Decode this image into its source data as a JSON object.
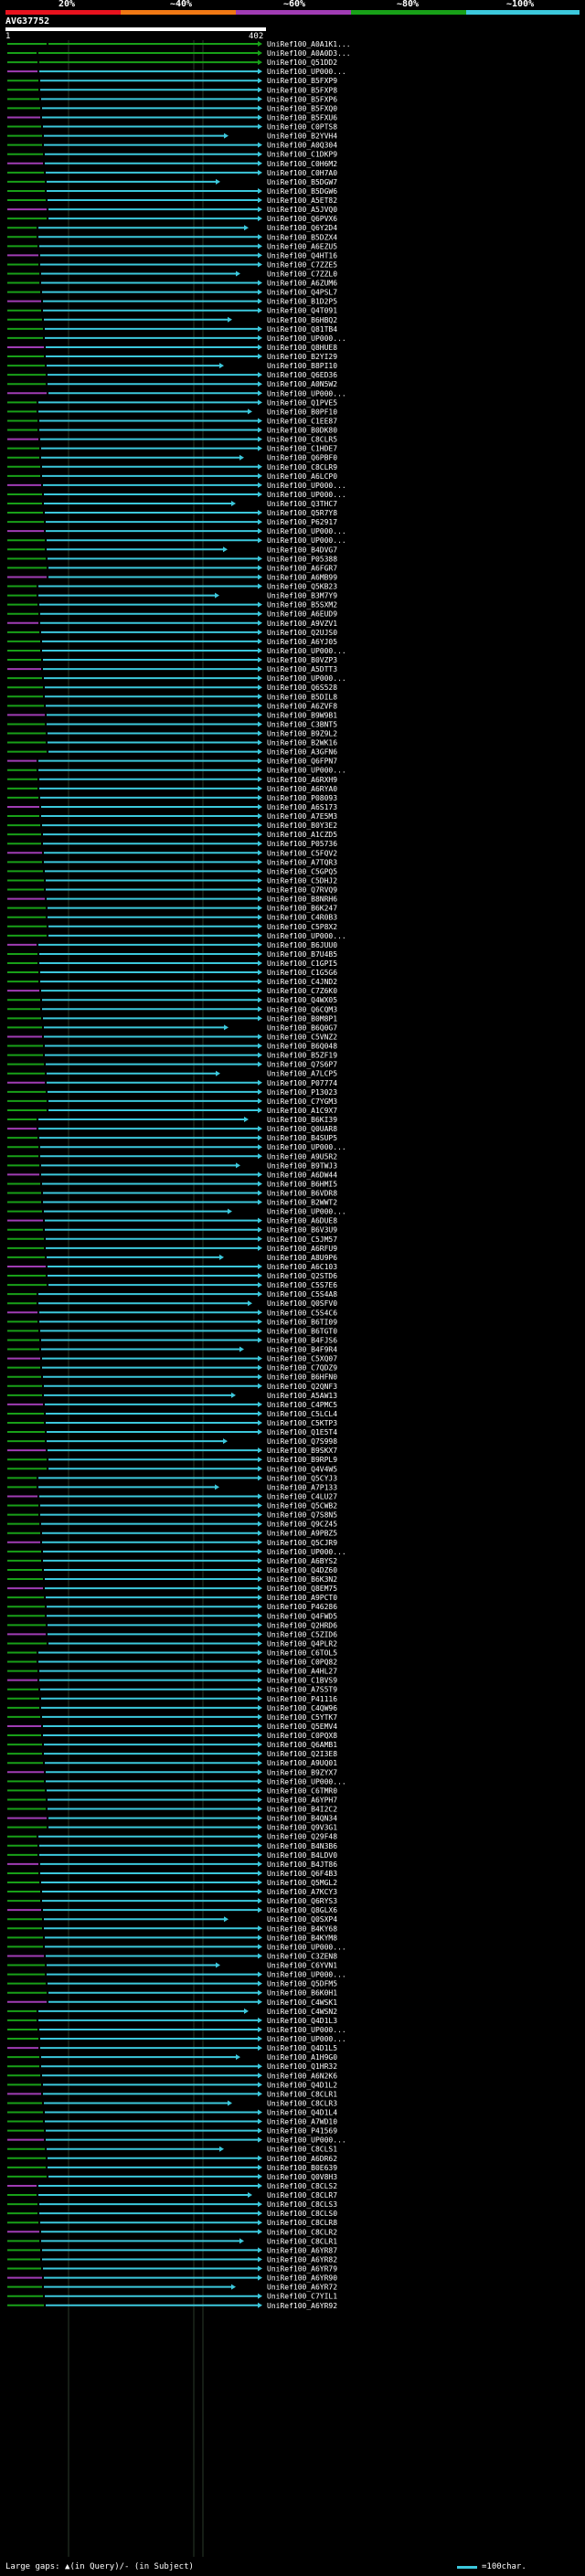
{
  "legend": {
    "labels": [
      "20%",
      "~40%",
      "~60%",
      "~80%",
      "~100%"
    ],
    "colors": [
      "#e8121e",
      "#f07814",
      "#a03cb4",
      "#18a018",
      "#3cc8dc"
    ]
  },
  "query": {
    "title": "AVG37752",
    "start": "1",
    "end": "402"
  },
  "hit_colors": {
    "cyan": "#3cc8dc",
    "green": "#18a018",
    "purple": "#a03cb4",
    "orange": "#f07814",
    "gray": "#707070"
  },
  "hits": [
    {
      "label": "UniRef100_A0A1K1...",
      "color": "green"
    },
    {
      "label": "UniRef100_A0A0D3...",
      "color": "green"
    },
    {
      "label": "UniRef100_Q51DD2",
      "color": "green"
    },
    {
      "label": "UniRef100_UP000...",
      "color": "cyan"
    },
    {
      "label": "UniRef100_B5FXP9",
      "color": "cyan"
    },
    {
      "label": "UniRef100_B5FXP8",
      "color": "cyan"
    },
    {
      "label": "UniRef100_B5FXP6",
      "color": "cyan"
    },
    {
      "label": "UniRef100_B5FXQ0",
      "color": "cyan"
    },
    {
      "label": "UniRef100_B5FXU6",
      "color": "cyan"
    },
    {
      "label": "UniRef100_C0PTS8",
      "color": "cyan"
    },
    {
      "label": "UniRef100_B2YVH4",
      "color": "cyan"
    },
    {
      "label": "UniRef100_A0Q304",
      "color": "cyan"
    },
    {
      "label": "UniRef100_C1DKP9",
      "color": "cyan"
    },
    {
      "label": "UniRef100_C0H6M2",
      "color": "cyan"
    },
    {
      "label": "UniRef100_C0H7A0",
      "color": "cyan"
    },
    {
      "label": "UniRef100_B5DGW7",
      "color": "cyan"
    },
    {
      "label": "UniRef100_B5DGW6",
      "color": "cyan"
    },
    {
      "label": "UniRef100_A5ET82",
      "color": "cyan"
    },
    {
      "label": "UniRef100_A5JVQ0",
      "color": "cyan"
    },
    {
      "label": "UniRef100_Q6PVX6",
      "color": "cyan"
    },
    {
      "label": "UniRef100_Q6Y2D4",
      "color": "cyan"
    },
    {
      "label": "UniRef100_B5DZX4",
      "color": "cyan"
    },
    {
      "label": "UniRef100_A6EZU5",
      "color": "cyan"
    },
    {
      "label": "UniRef100_Q4HT16",
      "color": "cyan"
    },
    {
      "label": "UniRef100_C7ZZE5",
      "color": "cyan"
    },
    {
      "label": "UniRef100_C7ZZL0",
      "color": "cyan"
    },
    {
      "label": "UniRef100_A6ZUM6",
      "color": "cyan"
    },
    {
      "label": "UniRef100_Q4PSL7",
      "color": "cyan"
    },
    {
      "label": "UniRef100_B1D2P5",
      "color": "cyan"
    },
    {
      "label": "UniRef100_Q4T091",
      "color": "cyan"
    },
    {
      "label": "UniRef100_B6HBQ2",
      "color": "cyan"
    },
    {
      "label": "UniRef100_Q81TB4",
      "color": "cyan"
    },
    {
      "label": "UniRef100_UP000...",
      "color": "cyan"
    },
    {
      "label": "UniRef100_Q8HUE8",
      "color": "cyan"
    },
    {
      "label": "UniRef100_B2YI29",
      "color": "cyan"
    },
    {
      "label": "UniRef100_B8PI10",
      "color": "cyan"
    },
    {
      "label": "UniRef100_Q6ED36",
      "color": "cyan"
    },
    {
      "label": "UniRef100_A0N5W2",
      "color": "cyan"
    },
    {
      "label": "UniRef100_UP000...",
      "color": "cyan"
    },
    {
      "label": "UniRef100_Q1PVE5",
      "color": "cyan"
    },
    {
      "label": "UniRef100_B0PF10",
      "color": "cyan"
    },
    {
      "label": "UniRef100_C1EE87",
      "color": "cyan"
    },
    {
      "label": "UniRef100_B0DK80",
      "color": "cyan"
    },
    {
      "label": "UniRef100_C8CLR5",
      "color": "cyan"
    },
    {
      "label": "UniRef100_C1HDE7",
      "color": "cyan"
    },
    {
      "label": "UniRef100_Q6PBF0",
      "color": "cyan"
    },
    {
      "label": "UniRef100_C8CLR9",
      "color": "cyan"
    },
    {
      "label": "UniRef100_A6LCP0",
      "color": "cyan"
    },
    {
      "label": "UniRef100_UP000...",
      "color": "cyan"
    },
    {
      "label": "UniRef100_UP000...",
      "color": "cyan"
    },
    {
      "label": "UniRef100_Q3THC7",
      "color": "cyan"
    },
    {
      "label": "UniRef100_Q5R7Y8",
      "color": "cyan"
    },
    {
      "label": "UniRef100_P62917",
      "color": "cyan"
    },
    {
      "label": "UniRef100_UP000...",
      "color": "cyan"
    },
    {
      "label": "UniRef100_UP000...",
      "color": "cyan"
    },
    {
      "label": "UniRef100_B4DVG7",
      "color": "cyan"
    },
    {
      "label": "UniRef100_P05388",
      "color": "cyan"
    },
    {
      "label": "UniRef100_A6FGR7",
      "color": "cyan"
    },
    {
      "label": "UniRef100_A6MB99",
      "color": "cyan"
    },
    {
      "label": "UniRef100_Q5KB23",
      "color": "cyan"
    },
    {
      "label": "UniRef100_B3M7Y9",
      "color": "cyan"
    },
    {
      "label": "UniRef100_B5SXM2",
      "color": "cyan"
    },
    {
      "label": "UniRef100_A6EUD9",
      "color": "cyan"
    },
    {
      "label": "UniRef100_A9VZV1",
      "color": "cyan"
    },
    {
      "label": "UniRef100_Q2UJS0",
      "color": "cyan"
    },
    {
      "label": "UniRef100_A6YJ05",
      "color": "cyan"
    },
    {
      "label": "UniRef100_UP000...",
      "color": "cyan"
    },
    {
      "label": "UniRef100_B0VZP3",
      "color": "cyan"
    },
    {
      "label": "UniRef100_A5DTT3",
      "color": "cyan"
    },
    {
      "label": "UniRef100_UP000...",
      "color": "cyan"
    },
    {
      "label": "UniRef100_Q6S528",
      "color": "cyan"
    },
    {
      "label": "UniRef100_B5DIL8",
      "color": "cyan"
    },
    {
      "label": "UniRef100_A6ZVF8",
      "color": "cyan"
    },
    {
      "label": "UniRef100_B9W9B1",
      "color": "cyan"
    },
    {
      "label": "UniRef100_C3BNT5",
      "color": "cyan"
    },
    {
      "label": "UniRef100_B9Z9L2",
      "color": "cyan"
    },
    {
      "label": "UniRef100_B2WK16",
      "color": "cyan"
    },
    {
      "label": "UniRef100_A3GFN6",
      "color": "cyan"
    },
    {
      "label": "UniRef100_Q6FPN7",
      "color": "cyan"
    },
    {
      "label": "UniRef100_UP000...",
      "color": "cyan"
    },
    {
      "label": "UniRef100_A6RXH9",
      "color": "cyan"
    },
    {
      "label": "UniRef100_A6RYA0",
      "color": "cyan"
    },
    {
      "label": "UniRef100_P08093",
      "color": "cyan"
    },
    {
      "label": "UniRef100_A6S173",
      "color": "cyan"
    },
    {
      "label": "UniRef100_A7E5M3",
      "color": "cyan"
    },
    {
      "label": "UniRef100_B0Y3E2",
      "color": "cyan"
    },
    {
      "label": "UniRef100_A1CZD5",
      "color": "cyan"
    },
    {
      "label": "UniRef100_P05736",
      "color": "cyan"
    },
    {
      "label": "UniRef100_C5FQV2",
      "color": "cyan"
    },
    {
      "label": "UniRef100_A7TQR3",
      "color": "cyan"
    },
    {
      "label": "UniRef100_C5GPQ5",
      "color": "cyan"
    },
    {
      "label": "UniRef100_C5DHJ2",
      "color": "cyan"
    },
    {
      "label": "UniRef100_Q7RVQ9",
      "color": "cyan"
    },
    {
      "label": "UniRef100_B8NRH6",
      "color": "cyan"
    },
    {
      "label": "UniRef100_B6K247",
      "color": "cyan"
    },
    {
      "label": "UniRef100_C4R0B3",
      "color": "cyan"
    },
    {
      "label": "UniRef100_C5P8X2",
      "color": "cyan"
    },
    {
      "label": "UniRef100_UP000...",
      "color": "cyan"
    },
    {
      "label": "UniRef100_B6JUU0",
      "color": "cyan"
    },
    {
      "label": "UniRef100_B7U4B5",
      "color": "cyan"
    },
    {
      "label": "UniRef100_C1GPI5",
      "color": "cyan"
    },
    {
      "label": "UniRef100_C1G5G6",
      "color": "cyan"
    },
    {
      "label": "UniRef100_C4JND2",
      "color": "cyan"
    },
    {
      "label": "UniRef100_C7Z6K0",
      "color": "cyan"
    },
    {
      "label": "UniRef100_Q4WX05",
      "color": "cyan"
    },
    {
      "label": "UniRef100_Q6CQM3",
      "color": "cyan"
    },
    {
      "label": "UniRef100_B0M8P1",
      "color": "cyan"
    },
    {
      "label": "UniRef100_B6Q0G7",
      "color": "cyan"
    },
    {
      "label": "UniRef100_C5VNZ2",
      "color": "cyan"
    },
    {
      "label": "UniRef100_B6Q048",
      "color": "cyan"
    },
    {
      "label": "UniRef100_B5ZF19",
      "color": "cyan"
    },
    {
      "label": "UniRef100_Q7S6P7",
      "color": "cyan"
    },
    {
      "label": "UniRef100_A7LCP5",
      "color": "cyan"
    },
    {
      "label": "UniRef100_P07774",
      "color": "cyan"
    },
    {
      "label": "UniRef100_P13023",
      "color": "cyan"
    },
    {
      "label": "UniRef100_C7YGM3",
      "color": "cyan"
    },
    {
      "label": "UniRef100_A1C9X7",
      "color": "cyan"
    },
    {
      "label": "UniRef100_B6KI39",
      "color": "cyan"
    },
    {
      "label": "UniRef100_Q0UAR8",
      "color": "cyan"
    },
    {
      "label": "UniRef100_B4SUP5",
      "color": "cyan"
    },
    {
      "label": "UniRef100_UP000...",
      "color": "cyan"
    },
    {
      "label": "UniRef100_A9U5R2",
      "color": "cyan"
    },
    {
      "label": "UniRef100_B9TWJ3",
      "color": "cyan"
    },
    {
      "label": "UniRef100_A6DW44",
      "color": "cyan"
    },
    {
      "label": "UniRef100_B6HMI5",
      "color": "cyan"
    },
    {
      "label": "UniRef100_B6VDR8",
      "color": "cyan"
    },
    {
      "label": "UniRef100_B2WWT2",
      "color": "cyan"
    },
    {
      "label": "UniRef100_UP000...",
      "color": "cyan"
    },
    {
      "label": "UniRef100_A6DUE8",
      "color": "cyan"
    },
    {
      "label": "UniRef100_B6V3U9",
      "color": "cyan"
    },
    {
      "label": "UniRef100_C5JM57",
      "color": "cyan"
    },
    {
      "label": "UniRef100_A6RFU9",
      "color": "cyan"
    },
    {
      "label": "UniRef100_A8U9P6",
      "color": "cyan"
    },
    {
      "label": "UniRef100_A6C103",
      "color": "cyan"
    },
    {
      "label": "UniRef100_Q2STD6",
      "color": "cyan"
    },
    {
      "label": "UniRef100_C5S7E6",
      "color": "cyan"
    },
    {
      "label": "UniRef100_C5S4A8",
      "color": "cyan"
    },
    {
      "label": "UniRef100_Q0SFV0",
      "color": "cyan"
    },
    {
      "label": "UniRef100_C5S4C6",
      "color": "cyan"
    },
    {
      "label": "UniRef100_B6TI09",
      "color": "cyan"
    },
    {
      "label": "UniRef100_B6TGT0",
      "color": "cyan"
    },
    {
      "label": "UniRef100_B4FJS6",
      "color": "cyan"
    },
    {
      "label": "UniRef100_B4F9R4",
      "color": "cyan"
    },
    {
      "label": "UniRef100_C5XQ07",
      "color": "cyan"
    },
    {
      "label": "UniRef100_C7QDZ9",
      "color": "cyan"
    },
    {
      "label": "UniRef100_B6HFN0",
      "color": "cyan"
    },
    {
      "label": "UniRef100_Q2QNF3",
      "color": "cyan"
    },
    {
      "label": "UniRef100_A5AW13",
      "color": "cyan"
    },
    {
      "label": "UniRef100_C4PMC5",
      "color": "cyan"
    },
    {
      "label": "UniRef100_C5LCL4",
      "color": "cyan"
    },
    {
      "label": "UniRef100_C5KTP3",
      "color": "cyan"
    },
    {
      "label": "UniRef100_Q1E5T4",
      "color": "cyan"
    },
    {
      "label": "UniRef100_Q7S998",
      "color": "cyan"
    },
    {
      "label": "UniRef100_B9SKX7",
      "color": "cyan"
    },
    {
      "label": "UniRef100_B9RPL9",
      "color": "cyan"
    },
    {
      "label": "UniRef100_Q4V4W5",
      "color": "cyan"
    },
    {
      "label": "UniRef100_Q5CYJ3",
      "color": "cyan"
    },
    {
      "label": "UniRef100_A7P133",
      "color": "cyan"
    },
    {
      "label": "UniRef100_C4LU27",
      "color": "cyan"
    },
    {
      "label": "UniRef100_Q5CWB2",
      "color": "cyan"
    },
    {
      "label": "UniRef100_Q7S8N5",
      "color": "cyan"
    },
    {
      "label": "UniRef100_Q9CZ45",
      "color": "cyan"
    },
    {
      "label": "UniRef100_A9PBZ5",
      "color": "cyan"
    },
    {
      "label": "UniRef100_Q5CJR9",
      "color": "cyan"
    },
    {
      "label": "UniRef100_UP000...",
      "color": "cyan"
    },
    {
      "label": "UniRef100_A6BYS2",
      "color": "cyan"
    },
    {
      "label": "UniRef100_Q4DZ60",
      "color": "cyan"
    },
    {
      "label": "UniRef100_B6K3N2",
      "color": "cyan"
    },
    {
      "label": "UniRef100_Q8EM75",
      "color": "cyan"
    },
    {
      "label": "UniRef100_A9PCT0",
      "color": "cyan"
    },
    {
      "label": "UniRef100_P46286",
      "color": "cyan"
    },
    {
      "label": "UniRef100_Q4FWD5",
      "color": "cyan"
    },
    {
      "label": "UniRef100_Q2HRD6",
      "color": "cyan"
    },
    {
      "label": "UniRef100_C5ZID6",
      "color": "cyan"
    },
    {
      "label": "UniRef100_Q4PLR2",
      "color": "cyan"
    },
    {
      "label": "UniRef100_C6TOL5",
      "color": "cyan"
    },
    {
      "label": "UniRef100_C0PQ82",
      "color": "cyan"
    },
    {
      "label": "UniRef100_A4HL27",
      "color": "cyan"
    },
    {
      "label": "UniRef100_C1BVS9",
      "color": "cyan"
    },
    {
      "label": "UniRef100_A7S5T9",
      "color": "cyan"
    },
    {
      "label": "UniRef100_P41116",
      "color": "cyan"
    },
    {
      "label": "UniRef100_C4QW96",
      "color": "cyan"
    },
    {
      "label": "UniRef100_C5YTK7",
      "color": "cyan"
    },
    {
      "label": "UniRef100_Q5EMV4",
      "color": "cyan"
    },
    {
      "label": "UniRef100_C0PQX8",
      "color": "cyan"
    },
    {
      "label": "UniRef100_Q6AMB1",
      "color": "cyan"
    },
    {
      "label": "UniRef100_Q2I3E8",
      "color": "cyan"
    },
    {
      "label": "UniRef100_A9UQ01",
      "color": "cyan"
    },
    {
      "label": "UniRef100_B9ZYX7",
      "color": "cyan"
    },
    {
      "label": "UniRef100_UP000...",
      "color": "cyan"
    },
    {
      "label": "UniRef100_C6TMR0",
      "color": "cyan"
    },
    {
      "label": "UniRef100_A6YPH7",
      "color": "cyan"
    },
    {
      "label": "UniRef100_B4I2C2",
      "color": "cyan"
    },
    {
      "label": "UniRef100_B4QN34",
      "color": "cyan"
    },
    {
      "label": "UniRef100_Q9V3G1",
      "color": "cyan"
    },
    {
      "label": "UniRef100_Q29F48",
      "color": "cyan"
    },
    {
      "label": "UniRef100_B4N3B6",
      "color": "cyan"
    },
    {
      "label": "UniRef100_B4LDV0",
      "color": "cyan"
    },
    {
      "label": "UniRef100_B4JT86",
      "color": "cyan"
    },
    {
      "label": "UniRef100_Q6F4B3",
      "color": "cyan"
    },
    {
      "label": "UniRef100_Q5MGL2",
      "color": "cyan"
    },
    {
      "label": "UniRef100_A7KCY3",
      "color": "cyan"
    },
    {
      "label": "UniRef100_Q6RYS3",
      "color": "cyan"
    },
    {
      "label": "UniRef100_Q8GLX6",
      "color": "cyan"
    },
    {
      "label": "UniRef100_Q0SXP4",
      "color": "cyan"
    },
    {
      "label": "UniRef100_B4KY68",
      "color": "cyan"
    },
    {
      "label": "UniRef100_B4KYM8",
      "color": "cyan"
    },
    {
      "label": "UniRef100_UP000...",
      "color": "cyan"
    },
    {
      "label": "UniRef100_C3ZEN8",
      "color": "cyan"
    },
    {
      "label": "UniRef100_C6YVN1",
      "color": "cyan"
    },
    {
      "label": "UniRef100_UP000...",
      "color": "cyan"
    },
    {
      "label": "UniRef100_Q5DFM5",
      "color": "cyan"
    },
    {
      "label": "UniRef100_B6K0H1",
      "color": "cyan"
    },
    {
      "label": "UniRef100_C4WSK1",
      "color": "cyan"
    },
    {
      "label": "UniRef100_C4WSN2",
      "color": "cyan"
    },
    {
      "label": "UniRef100_Q4D1L3",
      "color": "cyan"
    },
    {
      "label": "UniRef100_UP000...",
      "color": "cyan"
    },
    {
      "label": "UniRef100_UP000...",
      "color": "cyan"
    },
    {
      "label": "UniRef100_Q4D1L5",
      "color": "cyan"
    },
    {
      "label": "UniRef100_A1H9G0",
      "color": "cyan"
    },
    {
      "label": "UniRef100_Q1HR32",
      "color": "cyan"
    },
    {
      "label": "UniRef100_A6N2K6",
      "color": "cyan"
    },
    {
      "label": "UniRef100_Q4D1L2",
      "color": "cyan"
    },
    {
      "label": "UniRef100_C8CLR1",
      "color": "cyan"
    },
    {
      "label": "UniRef100_C8CLR3",
      "color": "cyan"
    },
    {
      "label": "UniRef100_Q4D1L4",
      "color": "cyan"
    },
    {
      "label": "UniRef100_A7WD10",
      "color": "cyan"
    },
    {
      "label": "UniRef100_P41569",
      "color": "cyan"
    },
    {
      "label": "UniRef100_UP000...",
      "color": "cyan"
    },
    {
      "label": "UniRef100_C8CLS1",
      "color": "cyan"
    },
    {
      "label": "UniRef100_A6DR62",
      "color": "cyan"
    },
    {
      "label": "UniRef100_B0E639",
      "color": "cyan"
    },
    {
      "label": "UniRef100_Q0V8H3",
      "color": "cyan"
    },
    {
      "label": "UniRef100_C8CLS2",
      "color": "cyan"
    },
    {
      "label": "UniRef100_C8CLR7",
      "color": "cyan"
    },
    {
      "label": "UniRef100_C8CLS3",
      "color": "cyan"
    },
    {
      "label": "UniRef100_C8CLS0",
      "color": "cyan"
    },
    {
      "label": "UniRef100_C8CLR8",
      "color": "cyan"
    },
    {
      "label": "UniRef100_C8CLR2",
      "color": "cyan"
    },
    {
      "label": "UniRef100_C8CLR1",
      "color": "cyan"
    },
    {
      "label": "UniRef100_A6YR87",
      "color": "cyan"
    },
    {
      "label": "UniRef100_A6YR82",
      "color": "cyan"
    },
    {
      "label": "UniRef100_A6YR79",
      "color": "cyan"
    },
    {
      "label": "UniRef100_A6YR90",
      "color": "cyan"
    },
    {
      "label": "UniRef100_A6YR72",
      "color": "cyan"
    },
    {
      "label": "UniRef100_C7YIL1",
      "color": "cyan"
    },
    {
      "label": "UniRef100_A6YR92",
      "color": "cyan"
    }
  ],
  "footer": {
    "left": "Large gaps: ▲(in Query)/- (in Subject)",
    "right": "=100char."
  }
}
